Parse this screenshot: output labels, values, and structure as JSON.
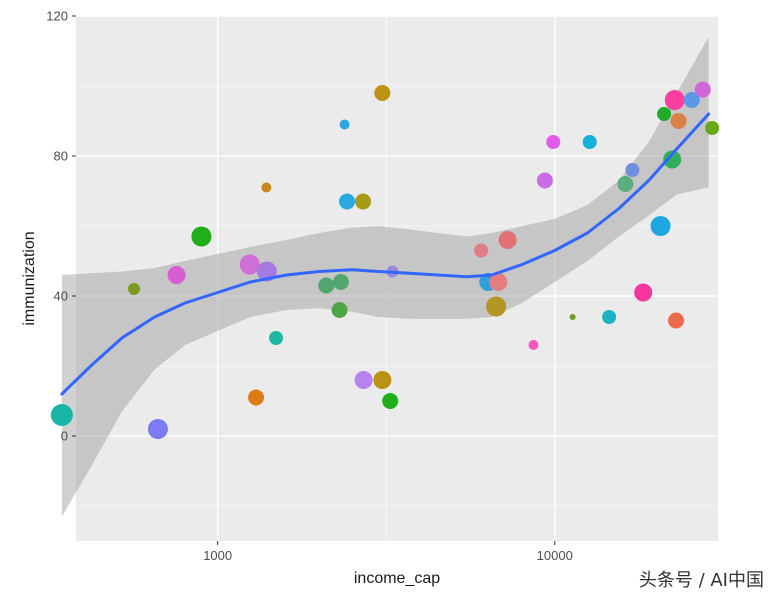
{
  "chart_data": {
    "type": "scatter",
    "xlabel": "income_cap",
    "ylabel": "immunization",
    "xscale": "log10",
    "xlim": [
      380,
      30500
    ],
    "ylim": [
      -30,
      120
    ],
    "xticks": [
      1000,
      10000
    ],
    "xtick_labels": [
      "1000",
      "10000"
    ],
    "yticks": [
      0,
      40,
      80,
      120
    ],
    "ytick_labels": [
      "0",
      "40",
      "80",
      "120"
    ],
    "grid": true,
    "background": "#ebebeb",
    "points": [
      {
        "x": 345,
        "y": 6,
        "size": 11,
        "color": "#18B5A8"
      },
      {
        "x": 665,
        "y": 2,
        "size": 10,
        "color": "#7C7BF4"
      },
      {
        "x": 565,
        "y": 42,
        "size": 6,
        "color": "#7D9A1E"
      },
      {
        "x": 755,
        "y": 46,
        "size": 9,
        "color": "#D65ED1"
      },
      {
        "x": 895,
        "y": 57,
        "size": 10,
        "color": "#1FAF19"
      },
      {
        "x": 1245,
        "y": 49,
        "size": 10,
        "color": "#CF6FD6"
      },
      {
        "x": 1400,
        "y": 47,
        "size": 10,
        "color": "#A57BE3"
      },
      {
        "x": 1300,
        "y": 11,
        "size": 8,
        "color": "#DF7B15"
      },
      {
        "x": 1395,
        "y": 71,
        "size": 5,
        "color": "#C88A17"
      },
      {
        "x": 1490,
        "y": 28,
        "size": 7,
        "color": "#1EB8A0"
      },
      {
        "x": 2100,
        "y": 43,
        "size": 8,
        "color": "#4FA66E"
      },
      {
        "x": 2300,
        "y": 36,
        "size": 8,
        "color": "#4FA646"
      },
      {
        "x": 2320,
        "y": 44,
        "size": 8,
        "color": "#4FA66E"
      },
      {
        "x": 2380,
        "y": 89,
        "size": 5,
        "color": "#2AA9E0"
      },
      {
        "x": 2420,
        "y": 67,
        "size": 8,
        "color": "#2AA9E0"
      },
      {
        "x": 2700,
        "y": 67,
        "size": 8,
        "color": "#A79A16"
      },
      {
        "x": 2710,
        "y": 16,
        "size": 9,
        "color": "#B683EE"
      },
      {
        "x": 3080,
        "y": 98,
        "size": 8,
        "color": "#BB9214"
      },
      {
        "x": 3080,
        "y": 16,
        "size": 9,
        "color": "#BB9214"
      },
      {
        "x": 3250,
        "y": 10,
        "size": 8,
        "color": "#1FAF19"
      },
      {
        "x": 3300,
        "y": 47,
        "size": 6,
        "color": "#9E88DC"
      },
      {
        "x": 6050,
        "y": 53,
        "size": 7,
        "color": "#E07C85"
      },
      {
        "x": 6350,
        "y": 44,
        "size": 9,
        "color": "#2F9FD9"
      },
      {
        "x": 6800,
        "y": 44,
        "size": 9,
        "color": "#E67E80"
      },
      {
        "x": 6700,
        "y": 37,
        "size": 10,
        "color": "#B39523"
      },
      {
        "x": 7250,
        "y": 56,
        "size": 9,
        "color": "#E47177"
      },
      {
        "x": 8650,
        "y": 26,
        "size": 5,
        "color": "#F359C0"
      },
      {
        "x": 9350,
        "y": 73,
        "size": 8,
        "color": "#CC6BE6"
      },
      {
        "x": 9900,
        "y": 84,
        "size": 7,
        "color": "#E05BEB"
      },
      {
        "x": 11300,
        "y": 34,
        "size": 3,
        "color": "#6BA120"
      },
      {
        "x": 12700,
        "y": 84,
        "size": 7,
        "color": "#16B0D8"
      },
      {
        "x": 14500,
        "y": 34,
        "size": 7,
        "color": "#1CB3C4"
      },
      {
        "x": 16200,
        "y": 72,
        "size": 8,
        "color": "#59AE7D"
      },
      {
        "x": 17000,
        "y": 76,
        "size": 7,
        "color": "#6E8EE0"
      },
      {
        "x": 18300,
        "y": 41,
        "size": 9,
        "color": "#F4369E"
      },
      {
        "x": 20600,
        "y": 60,
        "size": 10,
        "color": "#1CA7E0"
      },
      {
        "x": 21100,
        "y": 92,
        "size": 7,
        "color": "#23AA2A"
      },
      {
        "x": 22300,
        "y": 79,
        "size": 9,
        "color": "#2FAE5E"
      },
      {
        "x": 22900,
        "y": 33,
        "size": 8,
        "color": "#EE6A4C"
      },
      {
        "x": 23300,
        "y": 90,
        "size": 8,
        "color": "#DA8145"
      },
      {
        "x": 22700,
        "y": 96,
        "size": 10,
        "color": "#FF3FA0"
      },
      {
        "x": 25500,
        "y": 96,
        "size": 8,
        "color": "#5B98E8"
      },
      {
        "x": 27500,
        "y": 99,
        "size": 8,
        "color": "#CE68D8"
      },
      {
        "x": 29300,
        "y": 88,
        "size": 7,
        "color": "#69A914"
      }
    ],
    "smooth": {
      "color": "#3366FF",
      "fit": [
        [
          345,
          12
        ],
        [
          420,
          20
        ],
        [
          520,
          28
        ],
        [
          650,
          34
        ],
        [
          800,
          38
        ],
        [
          1000,
          41
        ],
        [
          1250,
          44
        ],
        [
          1600,
          46
        ],
        [
          2000,
          47
        ],
        [
          2500,
          47.5
        ],
        [
          3000,
          47
        ],
        [
          3700,
          46.5
        ],
        [
          4500,
          46
        ],
        [
          5500,
          45.5
        ],
        [
          6500,
          46
        ],
        [
          8000,
          49
        ],
        [
          10000,
          53
        ],
        [
          12500,
          58
        ],
        [
          15500,
          65
        ],
        [
          19000,
          73
        ],
        [
          23000,
          82
        ],
        [
          28600,
          92
        ]
      ],
      "upper": [
        [
          345,
          46
        ],
        [
          420,
          46.5
        ],
        [
          520,
          47
        ],
        [
          650,
          48
        ],
        [
          800,
          50
        ],
        [
          1000,
          52
        ],
        [
          1250,
          54
        ],
        [
          1600,
          56
        ],
        [
          2000,
          58
        ],
        [
          2500,
          59.5
        ],
        [
          3000,
          60
        ],
        [
          3700,
          59
        ],
        [
          4500,
          58
        ],
        [
          5500,
          57
        ],
        [
          6500,
          58
        ],
        [
          8000,
          60
        ],
        [
          10000,
          62
        ],
        [
          12500,
          66
        ],
        [
          15500,
          73
        ],
        [
          19000,
          84
        ],
        [
          23000,
          98
        ],
        [
          28600,
          114
        ]
      ],
      "lower": [
        [
          345,
          -23
        ],
        [
          420,
          -9
        ],
        [
          520,
          7
        ],
        [
          650,
          19
        ],
        [
          800,
          26
        ],
        [
          1000,
          30
        ],
        [
          1250,
          34
        ],
        [
          1600,
          36
        ],
        [
          2000,
          36.5
        ],
        [
          2500,
          35.5
        ],
        [
          3000,
          34
        ],
        [
          3700,
          33.5
        ],
        [
          4500,
          33.5
        ],
        [
          5500,
          33.5
        ],
        [
          6500,
          34
        ],
        [
          8000,
          38
        ],
        [
          10000,
          44
        ],
        [
          12500,
          50
        ],
        [
          15500,
          57
        ],
        [
          19000,
          63
        ],
        [
          23000,
          69
        ],
        [
          28600,
          71
        ]
      ]
    }
  },
  "watermark": {
    "text": "头条号 / AI中国"
  }
}
